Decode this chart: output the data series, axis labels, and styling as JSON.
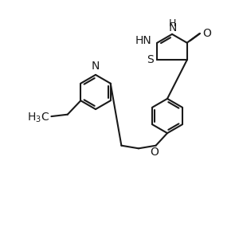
{
  "bg_color": "#ffffff",
  "line_color": "#1a1a1a",
  "line_width": 1.5,
  "font_size": 10,
  "figsize": [
    3.0,
    3.0
  ],
  "dpi": 100,
  "xlim": [
    0,
    10
  ],
  "ylim": [
    0,
    10
  ]
}
